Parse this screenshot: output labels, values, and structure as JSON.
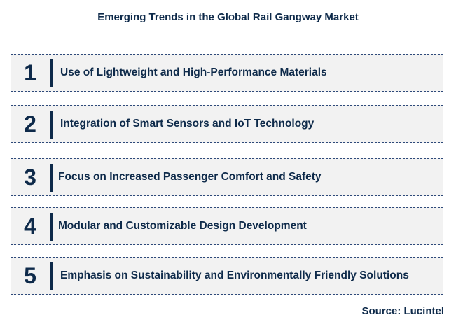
{
  "title": "Emerging Trends in the Global Rail Gangway Market",
  "trends": [
    {
      "number": "1",
      "text": "Use of Lightweight and High-Performance Materials"
    },
    {
      "number": "2",
      "text": "Integration of Smart Sensors and IoT Technology"
    },
    {
      "number": "3",
      "text": "Focus on Increased Passenger Comfort and Safety"
    },
    {
      "number": "4",
      "text": "Modular and Customizable Design Development"
    },
    {
      "number": "5",
      "text": "Emphasis on Sustainability and Environmentally Friendly Solutions"
    }
  ],
  "source": "Source: Lucintel",
  "colors": {
    "text": "#0e2a4a",
    "box_background": "#f2f2f2",
    "box_border": "#2e4a7a"
  }
}
